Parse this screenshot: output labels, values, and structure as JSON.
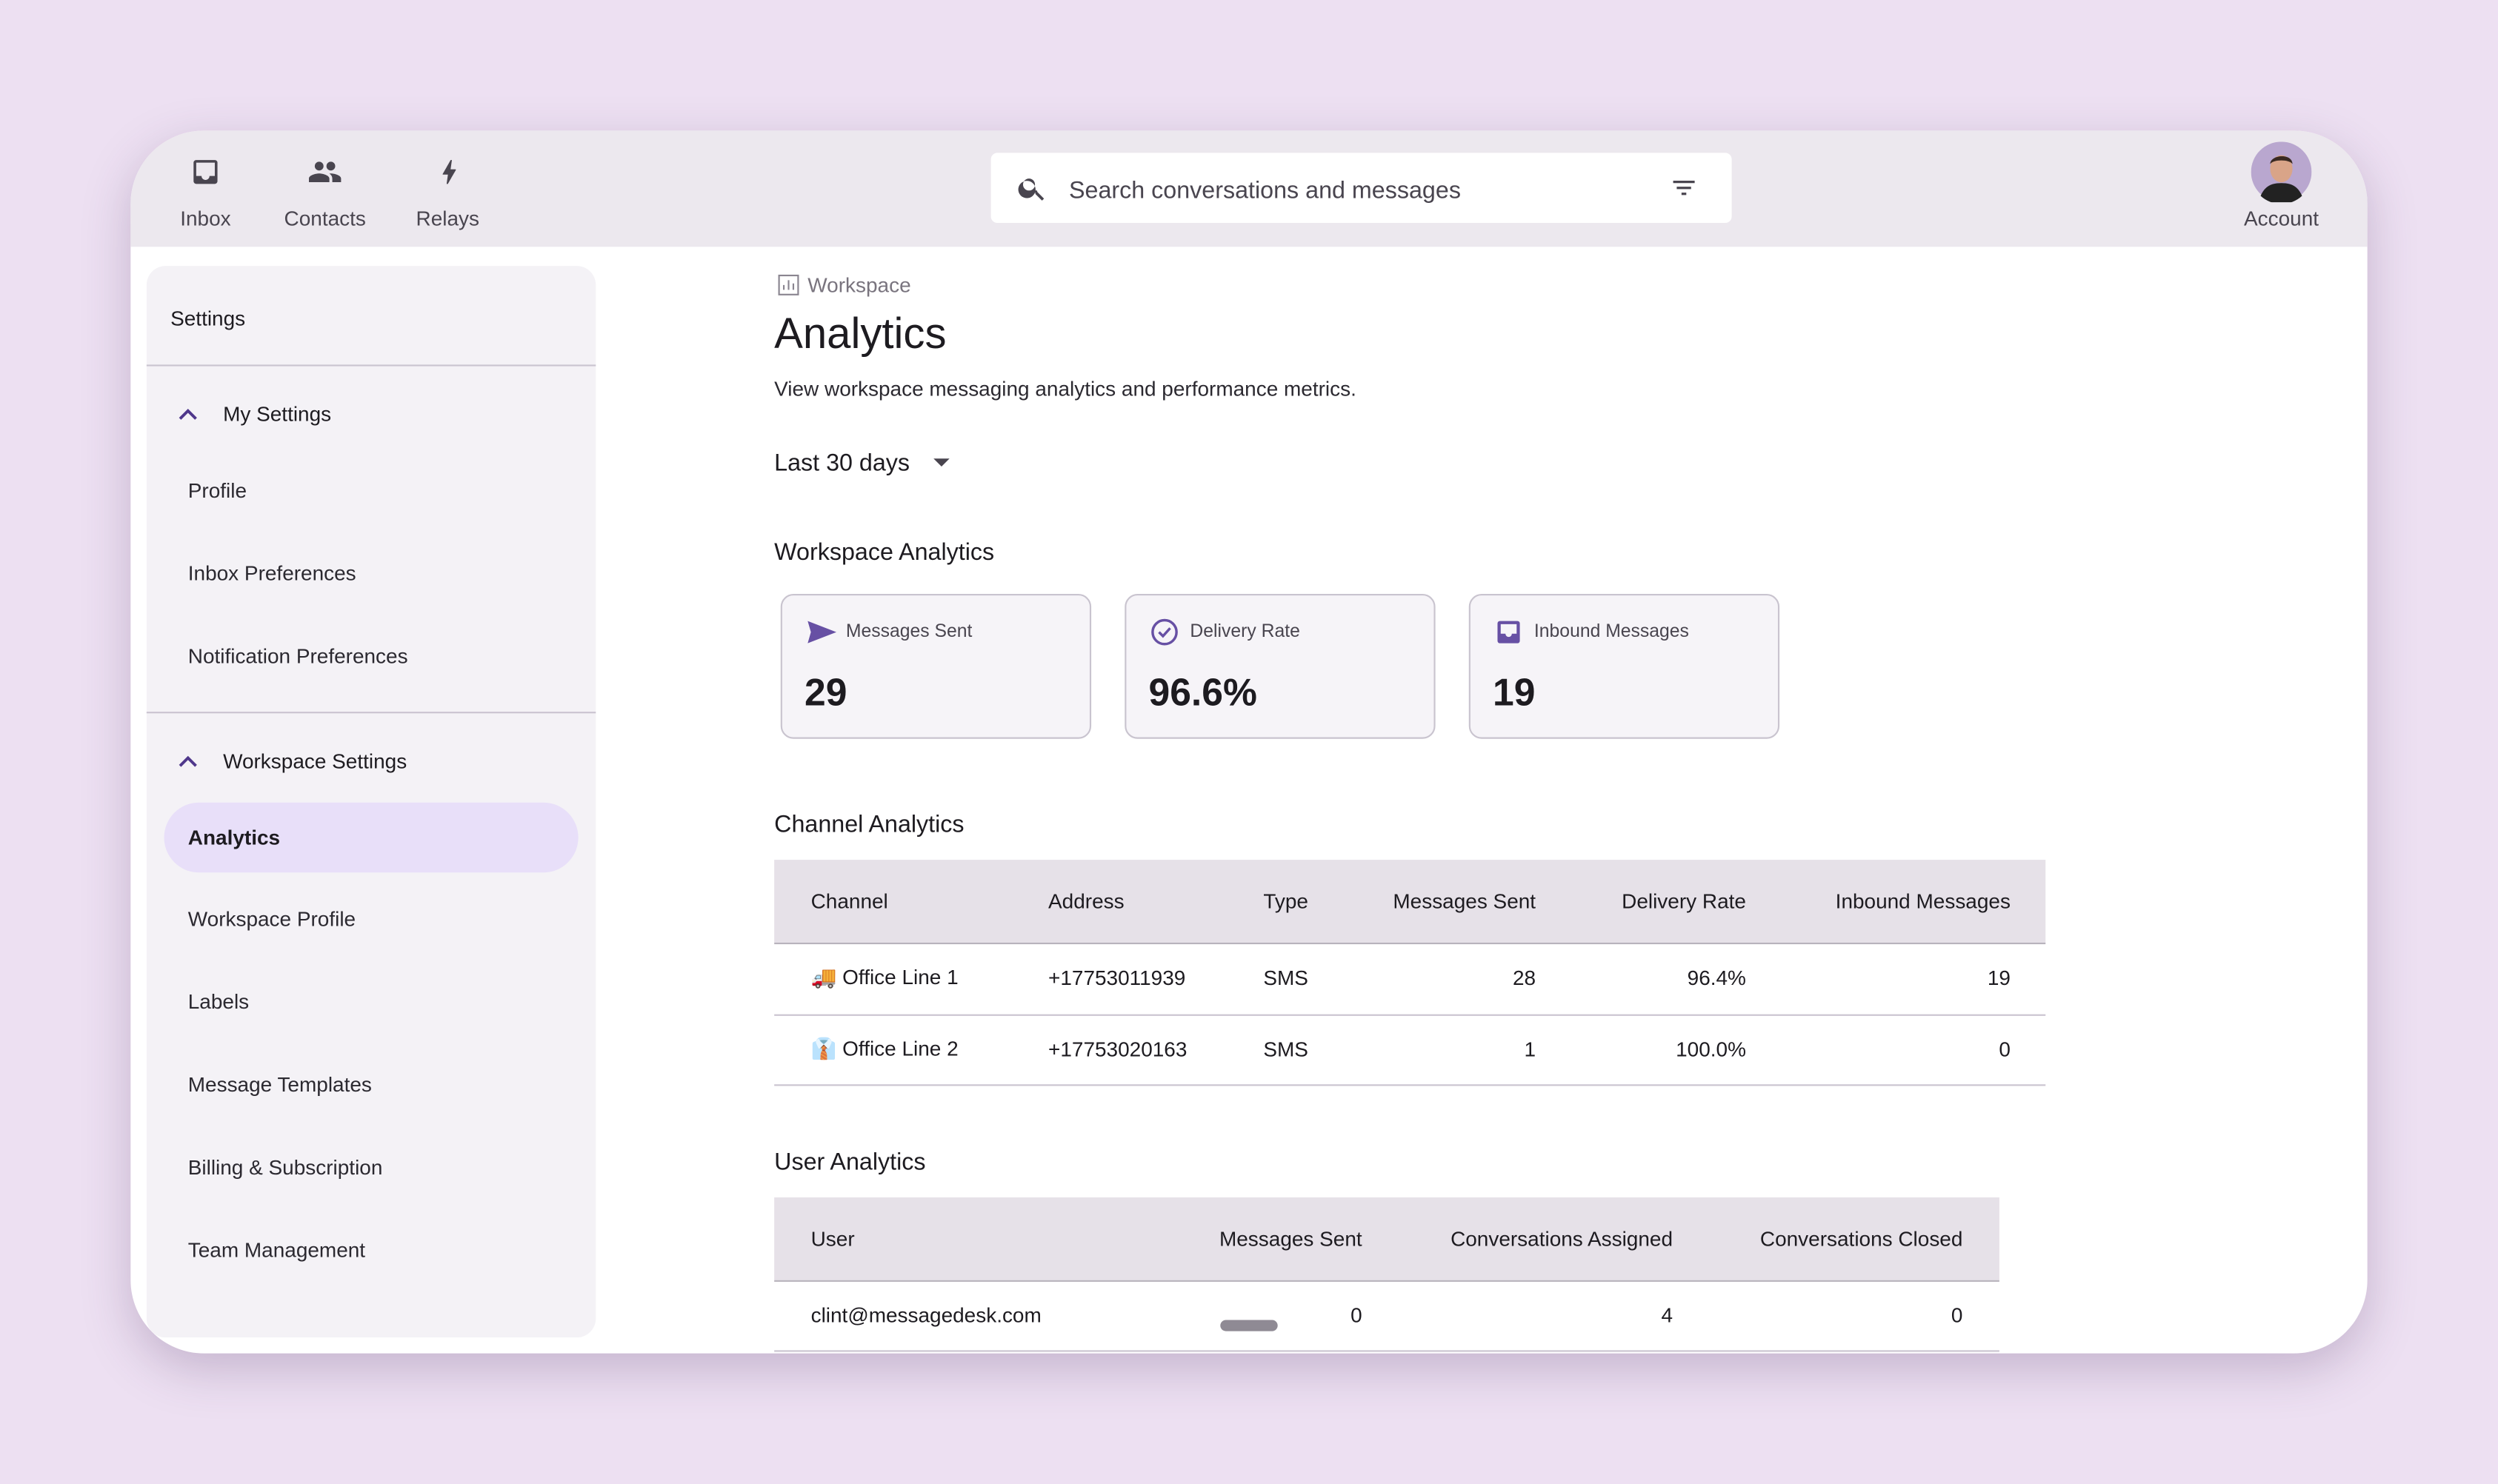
{
  "nav": {
    "items": [
      "Inbox",
      "Contacts",
      "Relays"
    ],
    "account": "Account"
  },
  "search": {
    "placeholder": "Search conversations and messages"
  },
  "sidebar": {
    "title": "Settings",
    "sections": [
      {
        "title": "My Settings",
        "items": [
          "Profile",
          "Inbox Preferences",
          "Notification Preferences"
        ]
      },
      {
        "title": "Workspace Settings",
        "selected": 0,
        "items": [
          "Analytics",
          "Workspace Profile",
          "Labels",
          "Message Templates",
          "Billing & Subscription",
          "Team Management"
        ]
      }
    ]
  },
  "page": {
    "breadcrumb": "Workspace",
    "title": "Analytics",
    "description": "View workspace messaging analytics and performance metrics.",
    "range": "Last 30 days",
    "metrics_title": "Workspace Analytics",
    "metrics": [
      {
        "label": "Messages Sent",
        "value": "29"
      },
      {
        "label": "Delivery Rate",
        "value": "96.6%"
      },
      {
        "label": "Inbound Messages",
        "value": "19"
      }
    ],
    "channel_table": {
      "title": "Channel Analytics",
      "columns": [
        "Channel",
        "Address",
        "Type",
        "Messages Sent",
        "Delivery Rate",
        "Inbound Messages"
      ],
      "rows": [
        [
          "🚚 Office Line 1",
          "+17753011939",
          "SMS",
          "28",
          "96.4%",
          "19"
        ],
        [
          "👔 Office Line 2",
          "+17753020163",
          "SMS",
          "1",
          "100.0%",
          "0"
        ]
      ]
    },
    "user_table": {
      "title": "User Analytics",
      "columns": [
        "User",
        "Messages Sent",
        "Conversations Assigned",
        "Conversations Closed"
      ],
      "rows": [
        [
          "clint@messagedesk.com",
          "0",
          "4",
          "0"
        ]
      ]
    }
  }
}
